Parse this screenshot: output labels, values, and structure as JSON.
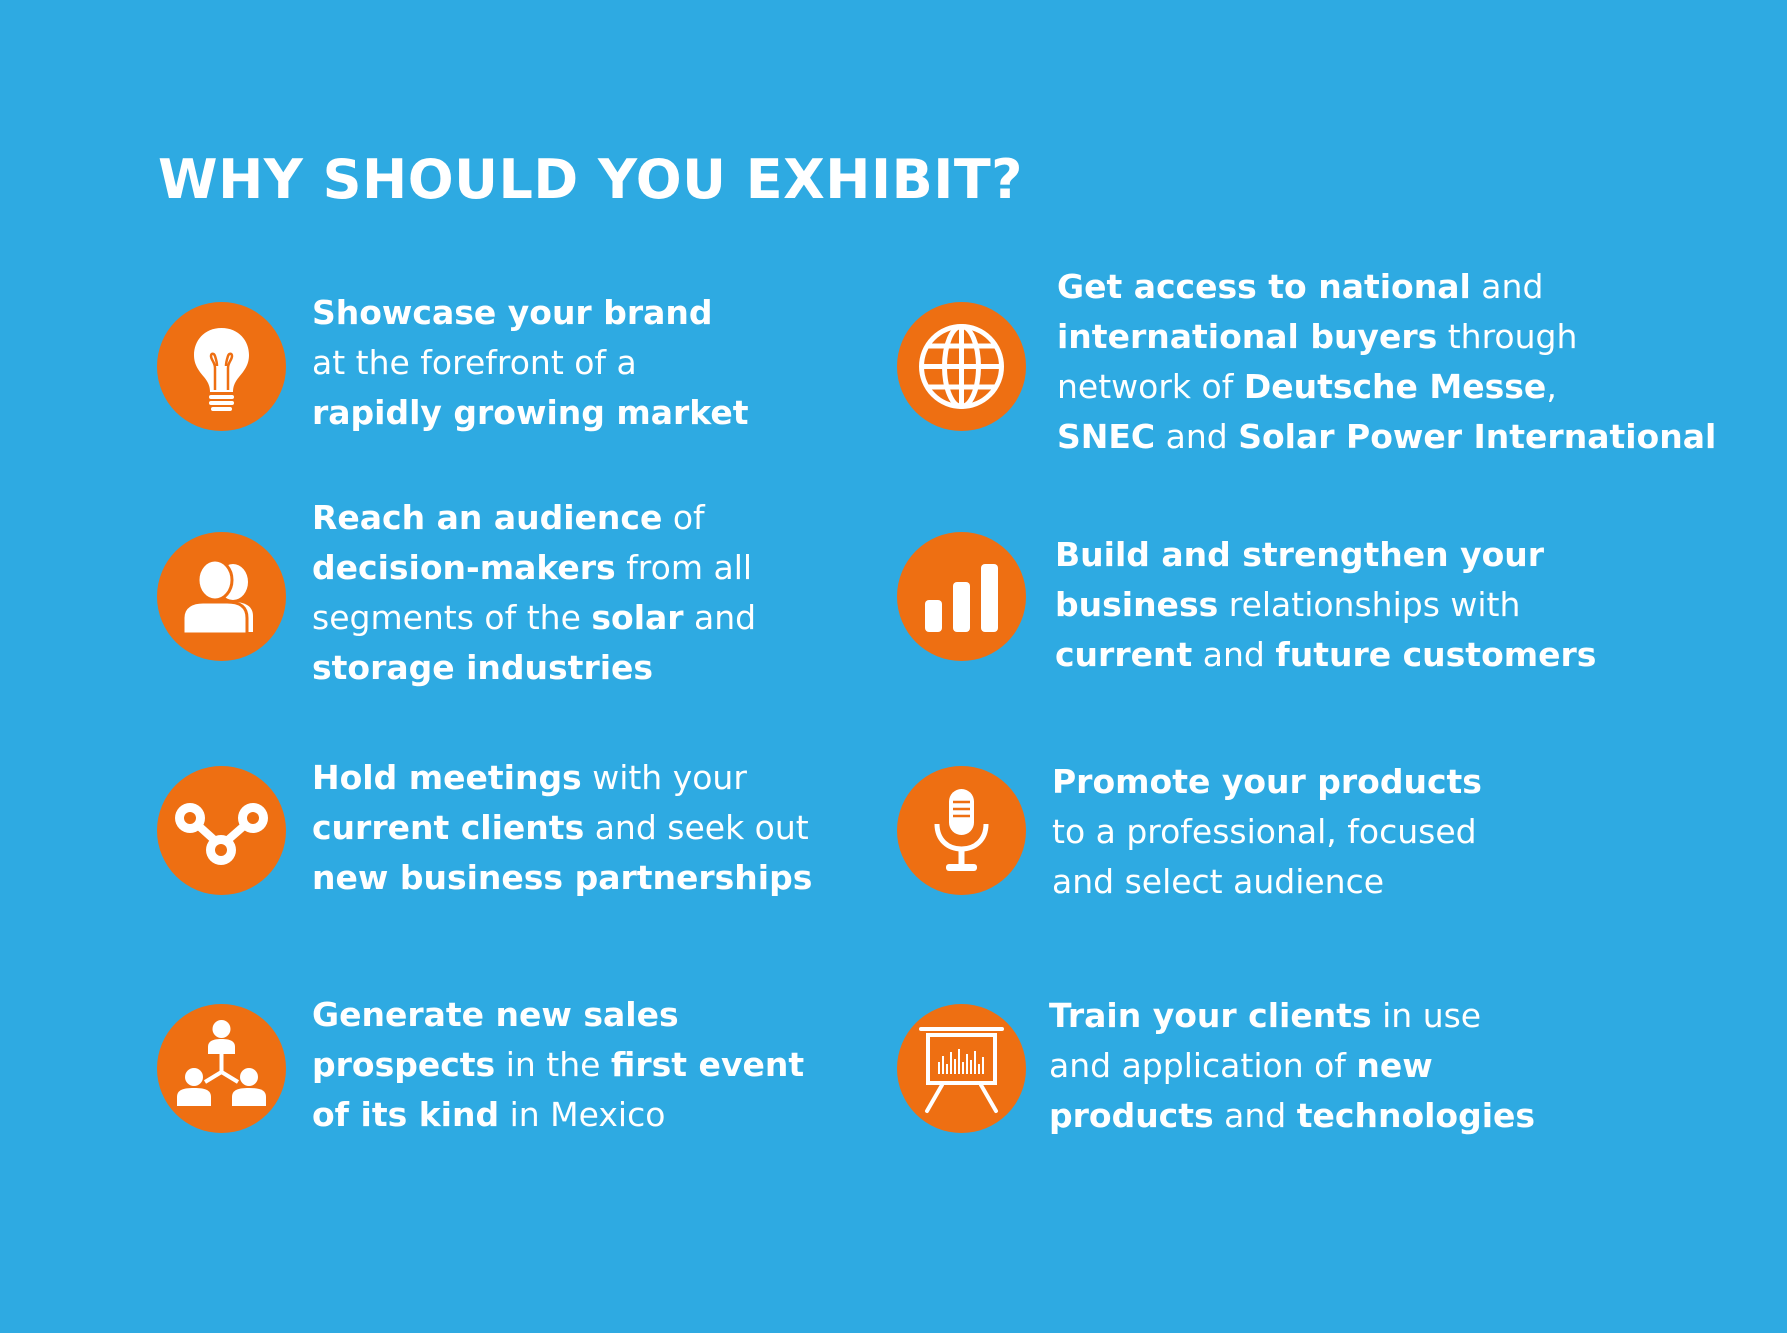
{
  "title": "WHY SHOULD YOU EXHIBIT?",
  "colors": {
    "background": "#2eaae2",
    "icon_circle": "#ee6f12",
    "text": "#ffffff"
  },
  "items": [
    {
      "icon": "lightbulb-icon",
      "lines": [
        [
          {
            "t": "Showcase your brand",
            "b": true
          }
        ],
        [
          {
            "t": "at the forefront of a",
            "b": false
          }
        ],
        [
          {
            "t": "rapidly growing market",
            "b": true
          }
        ]
      ]
    },
    {
      "icon": "globe-icon",
      "lines": [
        [
          {
            "t": "Get access to national",
            "b": true
          },
          {
            "t": " and",
            "b": false
          }
        ],
        [
          {
            "t": "international buyers",
            "b": true
          },
          {
            "t": " through",
            "b": false
          }
        ],
        [
          {
            "t": "network of ",
            "b": false
          },
          {
            "t": "Deutsche Messe",
            "b": true
          },
          {
            "t": ",",
            "b": false
          }
        ],
        [
          {
            "t": "SNEC",
            "b": true
          },
          {
            "t": " and ",
            "b": false
          },
          {
            "t": "Solar Power International",
            "b": true
          }
        ]
      ]
    },
    {
      "icon": "audience-icon",
      "lines": [
        [
          {
            "t": "Reach an audience",
            "b": true
          },
          {
            "t": " of",
            "b": false
          }
        ],
        [
          {
            "t": "decision-makers",
            "b": true
          },
          {
            "t": " from all",
            "b": false
          }
        ],
        [
          {
            "t": "segments of the ",
            "b": false
          },
          {
            "t": "solar",
            "b": true
          },
          {
            "t": " and",
            "b": false
          }
        ],
        [
          {
            "t": "storage industries",
            "b": true
          }
        ]
      ]
    },
    {
      "icon": "bar-chart-icon",
      "lines": [
        [
          {
            "t": "Build and strengthen your",
            "b": true
          }
        ],
        [
          {
            "t": "business",
            "b": true
          },
          {
            "t": " relationships with",
            "b": false
          }
        ],
        [
          {
            "t": "current",
            "b": true
          },
          {
            "t": " and ",
            "b": false
          },
          {
            "t": "future customers",
            "b": true
          }
        ]
      ]
    },
    {
      "icon": "meetings-icon",
      "lines": [
        [
          {
            "t": "Hold meetings",
            "b": true
          },
          {
            "t": " with your",
            "b": false
          }
        ],
        [
          {
            "t": "current clients",
            "b": true
          },
          {
            "t": " and seek out",
            "b": false
          }
        ],
        [
          {
            "t": "new business partnerships",
            "b": true
          }
        ]
      ]
    },
    {
      "icon": "microphone-icon",
      "lines": [
        [
          {
            "t": "Promote your products",
            "b": true
          }
        ],
        [
          {
            "t": "to a professional, focused",
            "b": false
          }
        ],
        [
          {
            "t": "and select audience",
            "b": false
          }
        ]
      ]
    },
    {
      "icon": "network-people-icon",
      "lines": [
        [
          {
            "t": "Generate new sales",
            "b": true
          }
        ],
        [
          {
            "t": "prospects",
            "b": true
          },
          {
            "t": " in the ",
            "b": false
          },
          {
            "t": "first event",
            "b": true
          }
        ],
        [
          {
            "t": "of its kind",
            "b": true
          },
          {
            "t": " in Mexico",
            "b": false
          }
        ]
      ]
    },
    {
      "icon": "presentation-board-icon",
      "lines": [
        [
          {
            "t": "Train your clients",
            "b": true
          },
          {
            "t": " in use",
            "b": false
          }
        ],
        [
          {
            "t": "and application of ",
            "b": false
          },
          {
            "t": "new",
            "b": true
          }
        ],
        [
          {
            "t": "products",
            "b": true
          },
          {
            "t": " and ",
            "b": false
          },
          {
            "t": "technologies",
            "b": true
          }
        ]
      ]
    }
  ]
}
